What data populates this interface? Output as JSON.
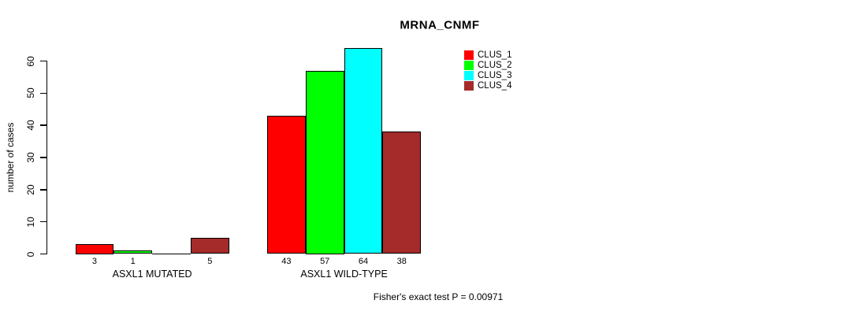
{
  "chart_data": {
    "type": "bar",
    "title": "MRNA_CNMF",
    "ylabel": "number of cases",
    "xlabel": "",
    "ylim": [
      0,
      60
    ],
    "yticks": [
      0,
      10,
      20,
      30,
      40,
      50,
      60
    ],
    "grid": false,
    "legend_position": "top-right",
    "categories": [
      "ASXL1 MUTATED",
      "ASXL1 WILD-TYPE"
    ],
    "series": [
      {
        "name": "CLUS_1",
        "color": "#ff0000",
        "values": [
          3,
          43
        ]
      },
      {
        "name": "CLUS_2",
        "color": "#00ff00",
        "values": [
          1,
          57
        ]
      },
      {
        "name": "CLUS_3",
        "color": "#00ffff",
        "values": [
          0,
          64
        ]
      },
      {
        "name": "CLUS_4",
        "color": "#a52a2a",
        "values": [
          5,
          38
        ]
      }
    ],
    "bar_value_labels": [
      [
        "3",
        "1",
        "",
        "5"
      ],
      [
        "43",
        "57",
        "64",
        "38"
      ]
    ],
    "annotation": "Fisher's exact test P = 0.00971",
    "axis_color": "#000000",
    "bar_border_color": "#000000",
    "background_color": "#ffffff"
  }
}
